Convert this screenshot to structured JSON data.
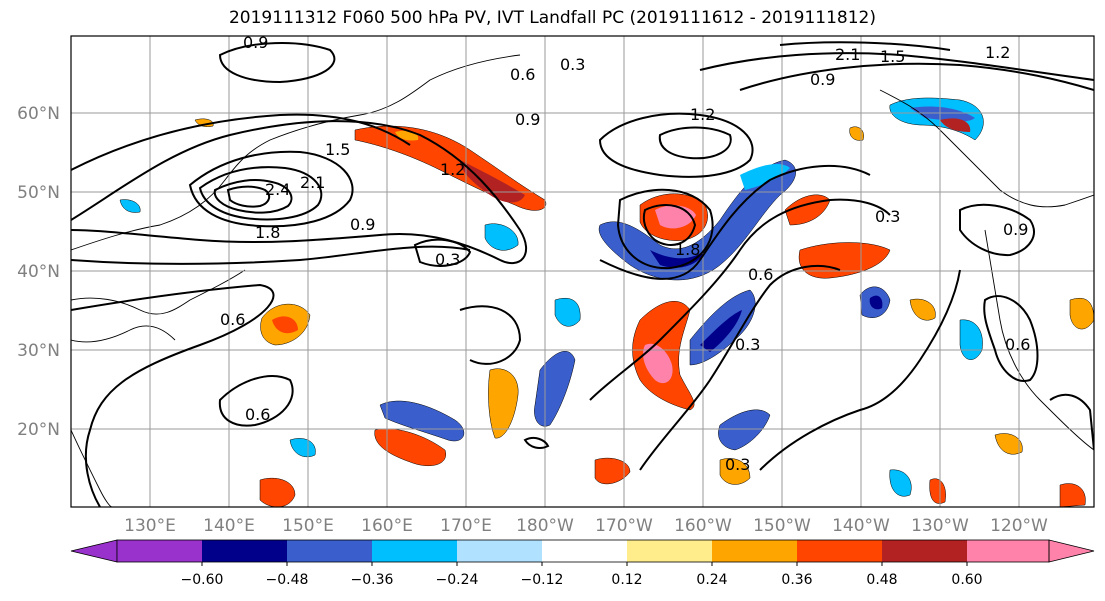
{
  "title": "2019111312 F060 500 hPa PV, IVT Landfall PC (2019111612 - 2019111812)",
  "map": {
    "lat_labels": [
      "60°N",
      "50°N",
      "40°N",
      "30°N",
      "20°N"
    ],
    "lon_labels": [
      "130°E",
      "140°E",
      "150°E",
      "160°E",
      "170°E",
      "180°W",
      "170°W",
      "160°W",
      "150°W",
      "140°W",
      "130°W",
      "120°W"
    ],
    "contour_labels": [
      "0.9",
      "0.6",
      "0.3",
      "1.2",
      "1.5",
      "1.8",
      "2.1",
      "2.4",
      "0.9",
      "0.3",
      "0.6",
      "0.9",
      "0.3",
      "0.6",
      "0.3",
      "0.6",
      "0.3",
      "0.6",
      "0.9",
      "1.2",
      "1.5",
      "2.1",
      "1.8",
      "1.2",
      "0.9"
    ],
    "fill_colors": {
      "neg_060": "#9932CC",
      "neg_048": "#00008B",
      "neg_036": "#3A5FCD",
      "neg_024": "#00BFFF",
      "neg_012": "#B0E2FF",
      "zero": "#FFFFFF",
      "pos_012": "#FFEC8B",
      "pos_024": "#FFA500",
      "pos_036": "#FF4500",
      "pos_048": "#B22222",
      "pos_060": "#FF82AB"
    }
  },
  "colorbar": {
    "labels": [
      "−0.60",
      "−0.48",
      "−0.36",
      "−0.24",
      "−0.12",
      "0.12",
      "0.24",
      "0.36",
      "0.48",
      "0.60"
    ],
    "colors": [
      "#9932CC",
      "#00008B",
      "#3A5FCD",
      "#00BFFF",
      "#B0E2FF",
      "#FFFFFF",
      "#FFEC8B",
      "#FFA500",
      "#FF4500",
      "#B22222",
      "#FF82AB"
    ]
  }
}
